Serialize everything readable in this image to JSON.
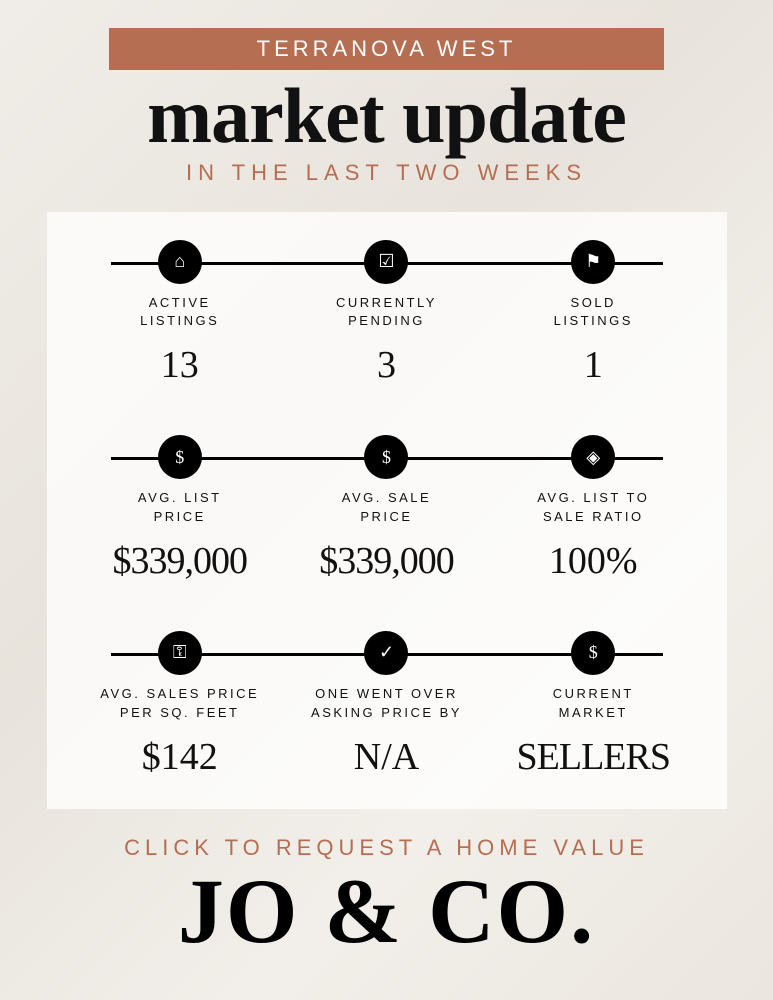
{
  "colors": {
    "accent": "#b56e52",
    "black": "#111111",
    "panel_bg": "rgba(255,255,255,0.78)",
    "page_bg": "#ece8e1"
  },
  "header": {
    "banner": "TERRANOVA WEST",
    "title": "market update",
    "subtitle": "IN THE LAST TWO WEEKS"
  },
  "rows": [
    {
      "cells": [
        {
          "icon": "home-icon",
          "glyph": "⌂",
          "label": "ACTIVE\nLISTINGS",
          "value": "13"
        },
        {
          "icon": "check-icon",
          "glyph": "☑",
          "label": "CURRENTLY\nPENDING",
          "value": "3"
        },
        {
          "icon": "sold-icon",
          "glyph": "⚑",
          "label": "SOLD\nLISTINGS",
          "value": "1"
        }
      ]
    },
    {
      "cells": [
        {
          "icon": "dollar-icon",
          "glyph": "$",
          "label": "AVG. LIST\nPRICE",
          "value": "$339,000"
        },
        {
          "icon": "moneybag-icon",
          "glyph": "$",
          "label": "AVG. SALE\nPRICE",
          "value": "$339,000"
        },
        {
          "icon": "tag-icon",
          "glyph": "◈",
          "label": "AVG. LIST TO\nSALE RATIO",
          "value": "100%"
        }
      ]
    },
    {
      "cells": [
        {
          "icon": "key-icon",
          "glyph": "⚿",
          "label": "AVG. SALES PRICE\nPER SQ. FEET",
          "value": "$142"
        },
        {
          "icon": "circle-check-icon",
          "glyph": "✓",
          "label": "ONE WENT OVER\nASKING PRICE BY",
          "value": "N/A"
        },
        {
          "icon": "chart-icon",
          "glyph": "$",
          "label": "CURRENT\nMARKET",
          "value": "SELLERS"
        }
      ]
    }
  ],
  "footer": {
    "cta": "CLICK TO REQUEST A HOME VALUE",
    "brand": "JO & CO."
  },
  "typography": {
    "title_fontsize": 78,
    "subtitle_fontsize": 22,
    "label_fontsize": 13,
    "value_fontsize": 38,
    "brand_fontsize": 92
  }
}
